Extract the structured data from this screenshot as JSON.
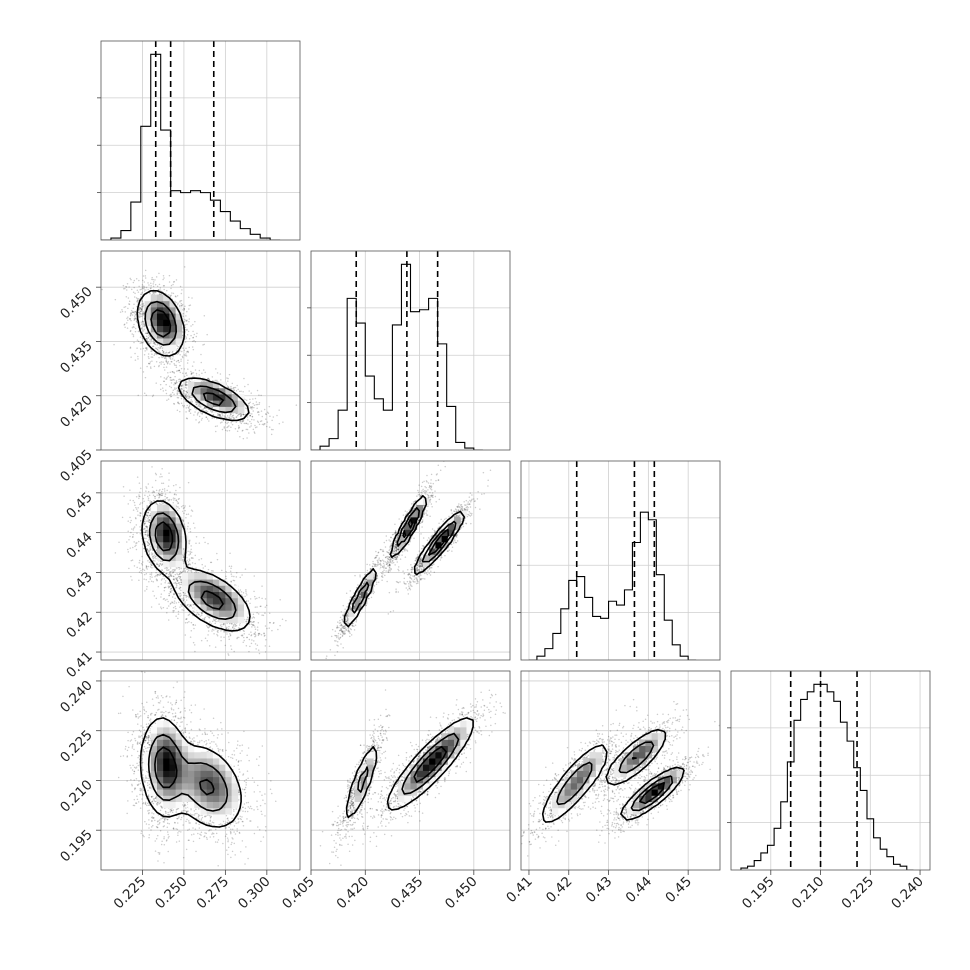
{
  "chart_data": {
    "type": "corner",
    "parameters": [
      "",
      "",
      "",
      ""
    ],
    "ranges": [
      [
        0.2,
        0.32
      ],
      [
        0.405,
        0.46
      ],
      [
        0.408,
        0.458
      ],
      [
        0.183,
        0.243
      ]
    ],
    "tick_values": [
      [
        0.225,
        0.25,
        0.275,
        0.3
      ],
      [
        0.405,
        0.42,
        0.435,
        0.45
      ],
      [
        0.41,
        0.42,
        0.43,
        0.44,
        0.45
      ],
      [
        0.195,
        0.21,
        0.225,
        0.24
      ]
    ],
    "tick_labels": [
      [
        "0.225",
        "0.250",
        "0.275",
        "0.300"
      ],
      [
        "0.405",
        "0.420",
        "0.435",
        "0.450"
      ],
      [
        "0.41",
        "0.42",
        "0.43",
        "0.44",
        "0.45"
      ],
      [
        "0.195",
        "0.210",
        "0.225",
        "0.240"
      ]
    ],
    "grid": true,
    "quantiles": [
      [
        0.233,
        0.242,
        0.268
      ],
      [
        0.4175,
        0.4315,
        0.44
      ],
      [
        0.422,
        0.4365,
        0.4415
      ],
      [
        0.201,
        0.21,
        0.221
      ]
    ],
    "histograms": [
      {
        "edges": [
          0.2,
          0.206,
          0.212,
          0.218,
          0.224,
          0.23,
          0.236,
          0.242,
          0.248,
          0.254,
          0.26,
          0.266,
          0.272,
          0.278,
          0.284,
          0.29,
          0.296,
          0.302,
          0.308
        ],
        "counts": [
          0.0,
          0.01,
          0.05,
          0.2,
          0.6,
          0.98,
          0.58,
          0.26,
          0.25,
          0.26,
          0.25,
          0.21,
          0.15,
          0.1,
          0.06,
          0.03,
          0.01,
          0.0
        ]
      },
      {
        "edges": [
          0.405,
          0.4075,
          0.41,
          0.4125,
          0.415,
          0.4175,
          0.42,
          0.4225,
          0.425,
          0.4275,
          0.43,
          0.4325,
          0.435,
          0.4375,
          0.44,
          0.4425,
          0.445,
          0.4475,
          0.45,
          0.4525
        ],
        "counts": [
          0.0,
          0.02,
          0.06,
          0.21,
          0.8,
          0.67,
          0.39,
          0.27,
          0.21,
          0.66,
          0.98,
          0.73,
          0.74,
          0.8,
          0.56,
          0.23,
          0.04,
          0.01,
          0.0
        ]
      },
      {
        "edges": [
          0.41,
          0.412,
          0.414,
          0.416,
          0.418,
          0.42,
          0.422,
          0.424,
          0.426,
          0.428,
          0.43,
          0.432,
          0.434,
          0.436,
          0.438,
          0.44,
          0.442,
          0.444,
          0.446,
          0.448,
          0.45,
          0.452
        ],
        "counts": [
          0.0,
          0.02,
          0.06,
          0.14,
          0.27,
          0.42,
          0.44,
          0.33,
          0.23,
          0.22,
          0.31,
          0.29,
          0.37,
          0.62,
          0.78,
          0.74,
          0.45,
          0.21,
          0.08,
          0.02,
          0.0
        ]
      },
      {
        "edges": [
          0.186,
          0.188,
          0.19,
          0.192,
          0.194,
          0.196,
          0.198,
          0.2,
          0.202,
          0.204,
          0.206,
          0.208,
          0.21,
          0.212,
          0.214,
          0.216,
          0.218,
          0.22,
          0.222,
          0.224,
          0.226,
          0.228,
          0.23,
          0.232,
          0.234,
          0.236,
          0.238
        ],
        "counts": [
          0.01,
          0.02,
          0.05,
          0.09,
          0.13,
          0.22,
          0.36,
          0.57,
          0.79,
          0.9,
          0.94,
          0.98,
          0.98,
          0.94,
          0.89,
          0.78,
          0.68,
          0.54,
          0.42,
          0.27,
          0.17,
          0.11,
          0.07,
          0.03,
          0.02,
          0.0
        ]
      }
    ],
    "blobs": [
      {
        "cell": [
          1,
          0
        ],
        "components": [
          {
            "center": [
              0.236,
              0.44
            ],
            "sigma": [
              0.007,
              0.0045
            ],
            "rho": -0.3,
            "weight": 1.0
          },
          {
            "center": [
              0.268,
              0.419
            ],
            "sigma": [
              0.011,
              0.003
            ],
            "rho": -0.6,
            "weight": 0.85
          }
        ]
      },
      {
        "cell": [
          2,
          0
        ],
        "components": [
          {
            "center": [
              0.238,
              0.439
            ],
            "sigma": [
              0.0065,
              0.0045
            ],
            "rho": -0.2,
            "weight": 1.0
          },
          {
            "center": [
              0.267,
              0.423
            ],
            "sigma": [
              0.012,
              0.004
            ],
            "rho": -0.55,
            "weight": 0.85
          }
        ]
      },
      {
        "cell": [
          2,
          1
        ],
        "components": [
          {
            "center": [
              0.4185,
              0.4235
            ],
            "sigma": [
              0.0025,
              0.0042
            ],
            "rho": 0.92,
            "weight": 0.55
          },
          {
            "center": [
              0.432,
              0.4415
            ],
            "sigma": [
              0.0025,
              0.004
            ],
            "rho": 0.92,
            "weight": 0.75
          },
          {
            "center": [
              0.4405,
              0.4375
            ],
            "sigma": [
              0.0035,
              0.004
            ],
            "rho": 0.92,
            "weight": 0.8
          }
        ]
      },
      {
        "cell": [
          3,
          0
        ],
        "components": [
          {
            "center": [
              0.238,
              0.214
            ],
            "sigma": [
              0.007,
              0.0075
            ],
            "rho": -0.1,
            "weight": 1.0
          },
          {
            "center": [
              0.264,
              0.208
            ],
            "sigma": [
              0.011,
              0.0065
            ],
            "rho": -0.3,
            "weight": 0.8
          }
        ]
      },
      {
        "cell": [
          3,
          1
        ],
        "components": [
          {
            "center": [
              0.419,
              0.2095
            ],
            "sigma": [
              0.0025,
              0.0065
            ],
            "rho": 0.85,
            "weight": 0.55
          },
          {
            "center": [
              0.438,
              0.215
            ],
            "sigma": [
              0.006,
              0.007
            ],
            "rho": 0.88,
            "weight": 1.0
          }
        ]
      },
      {
        "cell": [
          3,
          2
        ],
        "components": [
          {
            "center": [
              0.4215,
              0.209
            ],
            "sigma": [
              0.0045,
              0.0065
            ],
            "rho": 0.85,
            "weight": 0.55
          },
          {
            "center": [
              0.437,
              0.217
            ],
            "sigma": [
              0.004,
              0.0045
            ],
            "rho": 0.8,
            "weight": 0.6
          },
          {
            "center": [
              0.441,
              0.206
            ],
            "sigma": [
              0.004,
              0.004
            ],
            "rho": 0.85,
            "weight": 0.8
          }
        ]
      }
    ]
  }
}
